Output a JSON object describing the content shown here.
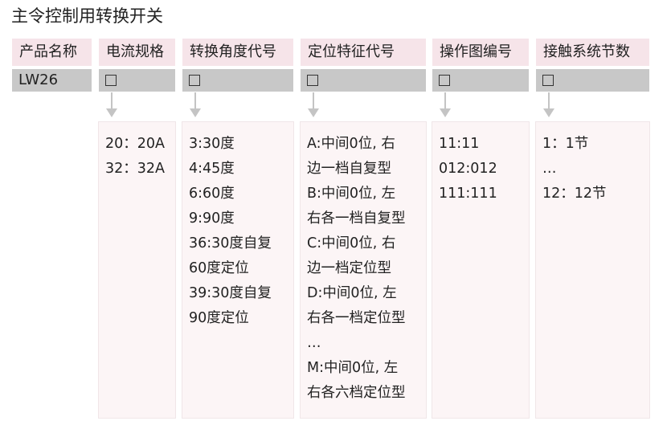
{
  "title": "主令控制用转换开关",
  "columns": [
    {
      "header": "产品名称",
      "code": "LW26",
      "lines": []
    },
    {
      "header": "电流规格",
      "code": "☐",
      "lines": [
        "20：20A",
        "32：32A"
      ]
    },
    {
      "header": "转换角度代号",
      "code": "☐",
      "lines": [
        "3:30度",
        "4:45度",
        "6:60度",
        "9:90度",
        "36:30度自复",
        "60度定位",
        "39:30度自复",
        "90度定位"
      ]
    },
    {
      "header": "定位特征代号",
      "code": "☐",
      "lines": [
        "A:中间0位, 右",
        "边一档自复型",
        "B:中间0位, 左",
        "右各一档自复型",
        "C:中间0位, 右",
        "边一档定位型",
        "D:中间0位, 左",
        "右各一档定位型",
        "…",
        "M:中间0位, 左",
        "右各六档定位型"
      ]
    },
    {
      "header": "操作图编号",
      "code": "☐",
      "lines": [
        "11:11",
        "012:012",
        "111:111"
      ]
    },
    {
      "header": "接触系统节数",
      "code": "☐",
      "lines": [
        "1：1节",
        "…",
        "12：12节"
      ]
    }
  ],
  "colors": {
    "header_bg": "#f6e4e9",
    "code_bg": "#c8c8c8",
    "detail_bg": "#fcf5f6",
    "arrow": "#c4c4c4"
  }
}
